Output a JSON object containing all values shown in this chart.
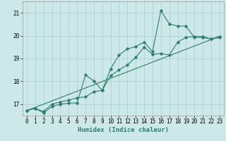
{
  "xlabel": "Humidex (Indice chaleur)",
  "bg_color": "#cde8e8",
  "line_color": "#2e7d6e",
  "grid_color": "#aacece",
  "xlim": [
    -0.5,
    23.5
  ],
  "ylim": [
    16.5,
    21.5
  ],
  "yticks": [
    17,
    18,
    19,
    20,
    21
  ],
  "xticks": [
    0,
    1,
    2,
    3,
    4,
    5,
    6,
    7,
    8,
    9,
    10,
    11,
    12,
    13,
    14,
    15,
    16,
    17,
    18,
    19,
    20,
    21,
    22,
    23
  ],
  "line1_x": [
    0,
    1,
    2,
    3,
    4,
    5,
    6,
    7,
    8,
    9,
    10,
    11,
    12,
    13,
    14,
    15,
    16,
    17,
    18,
    19,
    20,
    21,
    22,
    23
  ],
  "line1_y": [
    16.72,
    16.82,
    16.68,
    17.0,
    17.1,
    17.18,
    17.28,
    17.32,
    17.55,
    17.6,
    18.25,
    18.5,
    18.72,
    19.05,
    19.5,
    19.18,
    19.22,
    19.15,
    19.72,
    19.93,
    19.97,
    19.97,
    19.85,
    19.97
  ],
  "line2_x": [
    0,
    1,
    2,
    3,
    4,
    5,
    6,
    7,
    8,
    9,
    10,
    11,
    12,
    13,
    14,
    15,
    16,
    17,
    18,
    19,
    20,
    21,
    22,
    23
  ],
  "line2_y": [
    16.72,
    16.82,
    16.62,
    16.9,
    17.0,
    17.05,
    17.05,
    18.28,
    18.02,
    17.6,
    18.55,
    19.15,
    19.42,
    19.52,
    19.72,
    19.3,
    21.1,
    20.52,
    20.42,
    20.42,
    19.92,
    19.92,
    19.85,
    19.92
  ],
  "line3_x": [
    0,
    23
  ],
  "line3_y": [
    16.72,
    19.97
  ],
  "markersize": 1.8,
  "linewidth": 0.8,
  "xlabel_fontsize": 6.5,
  "tick_fontsize": 5.5,
  "ylabel_fontsize": 5.5
}
